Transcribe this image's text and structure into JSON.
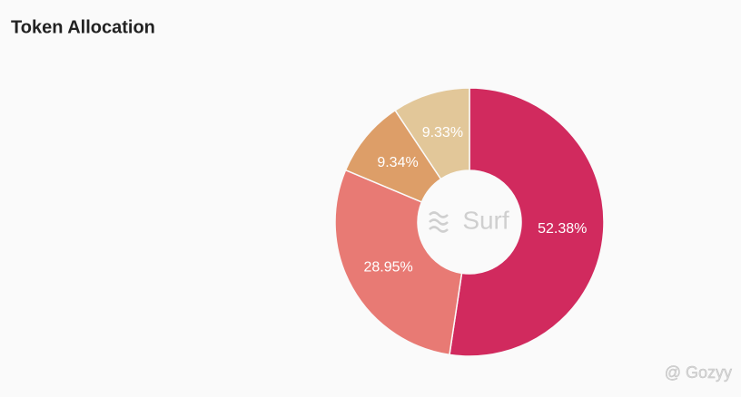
{
  "chart_data": {
    "type": "donut",
    "title": "Token Allocation",
    "values": [
      52.38,
      28.95,
      9.34,
      9.33
    ],
    "value_labels": [
      "52.38%",
      "28.95%",
      "9.34%",
      "9.33%"
    ],
    "colors": [
      "#d12a5e",
      "#e87a74",
      "#dd9e68",
      "#e2c799"
    ],
    "center_label": "Surf",
    "watermark": "@ Gozyy"
  }
}
